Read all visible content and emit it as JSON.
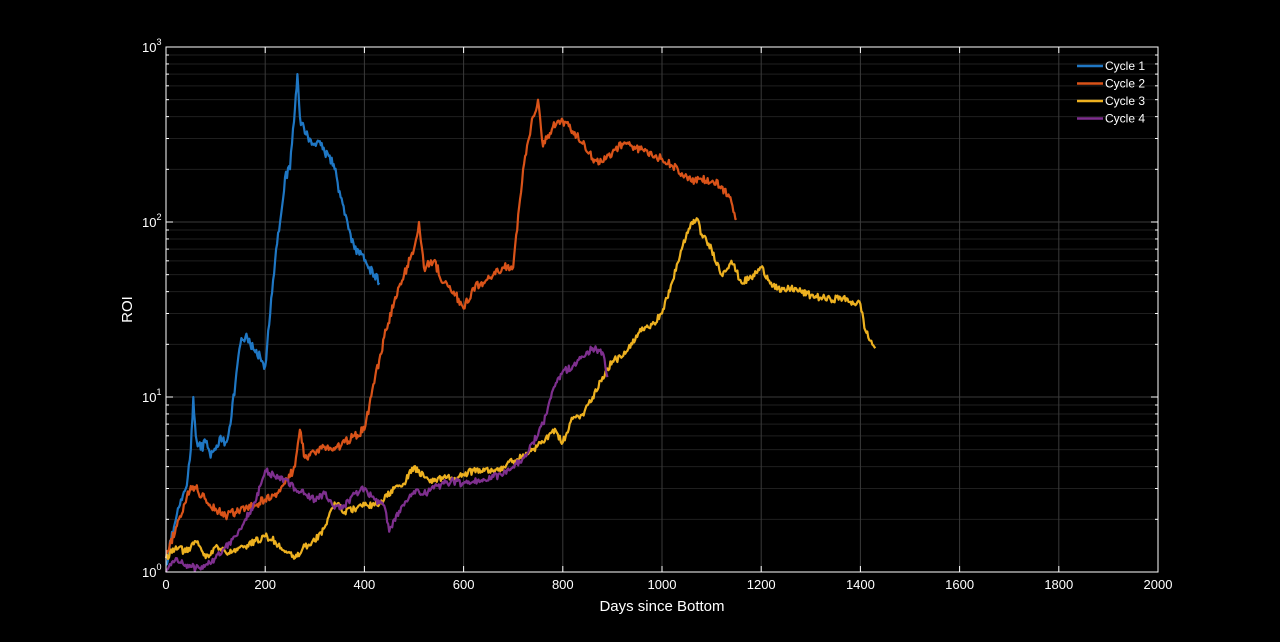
{
  "chart_data": {
    "type": "line",
    "xlabel": "Days since Bottom",
    "ylabel": "ROI",
    "xlim": [
      0,
      2000
    ],
    "ylim": [
      1,
      1000
    ],
    "yscale": "log",
    "grid": true,
    "legend_position": "top-right",
    "background": "#000000",
    "x_ticks": [
      {
        "value": 0,
        "label": "0"
      },
      {
        "value": 200,
        "label": "200"
      },
      {
        "value": 400,
        "label": "400"
      },
      {
        "value": 600,
        "label": "600"
      },
      {
        "value": 800,
        "label": "800"
      },
      {
        "value": 1000,
        "label": "1000"
      },
      {
        "value": 1200,
        "label": "1200"
      },
      {
        "value": 1400,
        "label": "1400"
      },
      {
        "value": 1600,
        "label": "1600"
      },
      {
        "value": 1800,
        "label": "1800"
      },
      {
        "value": 2000,
        "label": "2000"
      }
    ],
    "y_ticks": [
      {
        "value": 1,
        "base": "10",
        "exp": "0"
      },
      {
        "value": 10,
        "base": "10",
        "exp": "1"
      },
      {
        "value": 100,
        "base": "10",
        "exp": "2"
      },
      {
        "value": 1000,
        "base": "10",
        "exp": "3"
      }
    ],
    "series": [
      {
        "name": "Cycle 1",
        "color": "#1f77c4",
        "x": [
          0,
          10,
          20,
          30,
          40,
          50,
          55,
          60,
          70,
          80,
          90,
          100,
          110,
          120,
          130,
          140,
          150,
          160,
          170,
          180,
          190,
          200,
          210,
          220,
          230,
          240,
          250,
          260,
          265,
          270,
          280,
          290,
          300,
          310,
          320,
          330,
          340,
          350,
          360,
          370,
          380,
          390,
          400,
          410,
          420,
          430
        ],
        "y": [
          1.1,
          1.5,
          2.0,
          2.6,
          3.0,
          5.0,
          10.0,
          6.0,
          5.0,
          5.5,
          4.5,
          5.0,
          6.0,
          5.5,
          7.0,
          12,
          20,
          22,
          20,
          18,
          17,
          15,
          30,
          60,
          100,
          180,
          200,
          450,
          700,
          400,
          320,
          300,
          280,
          290,
          250,
          240,
          200,
          150,
          110,
          90,
          70,
          65,
          60,
          55,
          50,
          45
        ],
        "noise": 0.06
      },
      {
        "name": "Cycle 2",
        "color": "#d95319",
        "x": [
          0,
          20,
          40,
          50,
          60,
          80,
          100,
          120,
          140,
          160,
          180,
          200,
          220,
          240,
          260,
          270,
          280,
          300,
          320,
          340,
          360,
          380,
          400,
          410,
          420,
          440,
          460,
          480,
          500,
          510,
          520,
          540,
          560,
          580,
          600,
          620,
          640,
          660,
          680,
          700,
          720,
          740,
          750,
          760,
          780,
          800,
          820,
          840,
          860,
          880,
          900,
          920,
          940,
          960,
          980,
          1000,
          1020,
          1040,
          1060,
          1080,
          1100,
          1120,
          1140,
          1150
        ],
        "y": [
          1.2,
          1.8,
          2.5,
          3.1,
          3.0,
          2.6,
          2.3,
          2.1,
          2.2,
          2.3,
          2.4,
          2.6,
          2.8,
          3.2,
          4.0,
          6.5,
          4.5,
          4.8,
          5.2,
          5.0,
          5.5,
          6.0,
          6.5,
          9.0,
          12,
          22,
          35,
          50,
          70,
          100,
          55,
          60,
          45,
          40,
          32,
          42,
          45,
          50,
          55,
          55,
          200,
          400,
          500,
          270,
          350,
          380,
          330,
          280,
          230,
          220,
          250,
          280,
          270,
          260,
          240,
          230,
          210,
          190,
          170,
          175,
          170,
          160,
          130,
          105
        ],
        "noise": 0.05
      },
      {
        "name": "Cycle 3",
        "color": "#edb120",
        "x": [
          0,
          20,
          40,
          60,
          80,
          100,
          120,
          140,
          160,
          180,
          200,
          220,
          240,
          260,
          280,
          300,
          320,
          340,
          360,
          380,
          400,
          420,
          440,
          460,
          480,
          500,
          520,
          540,
          560,
          580,
          600,
          620,
          640,
          660,
          680,
          700,
          720,
          740,
          760,
          780,
          800,
          820,
          840,
          860,
          880,
          900,
          920,
          940,
          960,
          980,
          1000,
          1020,
          1040,
          1060,
          1070,
          1080,
          1100,
          1120,
          1140,
          1160,
          1180,
          1200,
          1220,
          1240,
          1260,
          1280,
          1300,
          1320,
          1340,
          1360,
          1380,
          1400,
          1410,
          1420,
          1430
        ],
        "y": [
          1.2,
          1.4,
          1.3,
          1.5,
          1.2,
          1.4,
          1.3,
          1.3,
          1.4,
          1.5,
          1.6,
          1.5,
          1.3,
          1.2,
          1.4,
          1.5,
          1.8,
          2.5,
          2.2,
          2.3,
          2.4,
          2.4,
          2.6,
          3.0,
          3.2,
          4.0,
          3.5,
          3.3,
          3.5,
          3.4,
          3.6,
          3.8,
          3.9,
          3.8,
          4.0,
          4.3,
          4.7,
          5.0,
          5.5,
          6.5,
          5.5,
          7.5,
          8.0,
          10.0,
          13.0,
          16.0,
          17.0,
          20.0,
          25.0,
          26.0,
          30.0,
          45.0,
          70.0,
          100.0,
          105.0,
          85.0,
          70.0,
          50.0,
          60.0,
          45.0,
          48.0,
          55.0,
          45.0,
          40.0,
          42.0,
          40.0,
          38.0,
          37.0,
          36.0,
          37.0,
          35.0,
          34.0,
          24.0,
          21.0,
          19.0
        ],
        "noise": 0.04
      },
      {
        "name": "Cycle 4",
        "color": "#7e2f8e",
        "x": [
          0,
          20,
          40,
          60,
          80,
          100,
          120,
          140,
          160,
          180,
          200,
          220,
          240,
          260,
          280,
          300,
          320,
          340,
          360,
          380,
          400,
          420,
          440,
          450,
          460,
          480,
          500,
          520,
          540,
          560,
          580,
          600,
          620,
          640,
          660,
          680,
          700,
          720,
          740,
          760,
          780,
          800,
          820,
          840,
          860,
          880,
          890
        ],
        "y": [
          1.0,
          1.2,
          1.1,
          1.05,
          1.1,
          1.2,
          1.4,
          1.6,
          2.0,
          2.5,
          3.8,
          3.5,
          3.4,
          3.0,
          2.8,
          2.6,
          2.8,
          2.3,
          2.4,
          2.8,
          3.0,
          2.6,
          2.4,
          1.7,
          2.0,
          2.4,
          2.9,
          2.8,
          3.0,
          3.2,
          3.3,
          3.2,
          3.3,
          3.4,
          3.5,
          3.6,
          4.0,
          4.5,
          5.5,
          7.0,
          11.0,
          14.0,
          15.0,
          17.0,
          19.0,
          18.0,
          13.0
        ],
        "noise": 0.04
      }
    ]
  }
}
